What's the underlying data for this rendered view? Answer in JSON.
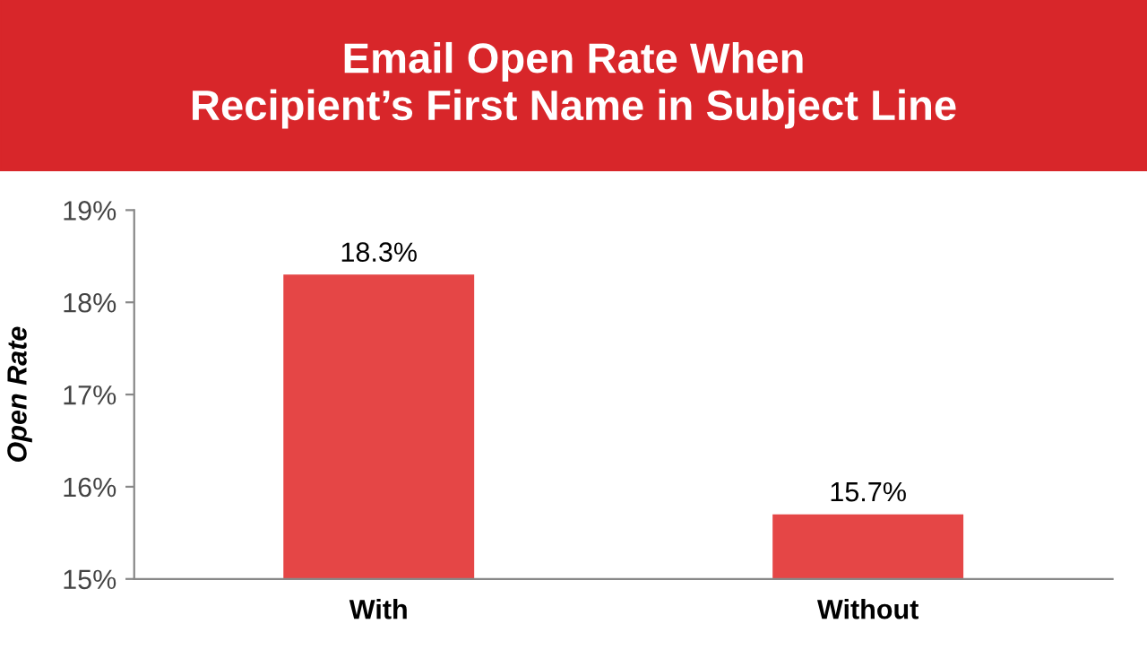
{
  "chart_data": {
    "type": "bar",
    "title": "Email Open Rate When\nRecipient’s First Name in Subject Line",
    "ylabel": "Open Rate",
    "categories": [
      "With",
      "Without"
    ],
    "values": [
      18.3,
      15.7
    ],
    "value_labels": [
      "18.3%",
      "15.7%"
    ],
    "color": "#e54646",
    "ylim": [
      15,
      19
    ],
    "yticks": [
      {
        "value": 15,
        "label": "15%"
      },
      {
        "value": 16,
        "label": "16%"
      },
      {
        "value": 17,
        "label": "17%"
      },
      {
        "value": 18,
        "label": "18%"
      },
      {
        "value": 19,
        "label": "19%"
      }
    ],
    "grid": false
  }
}
